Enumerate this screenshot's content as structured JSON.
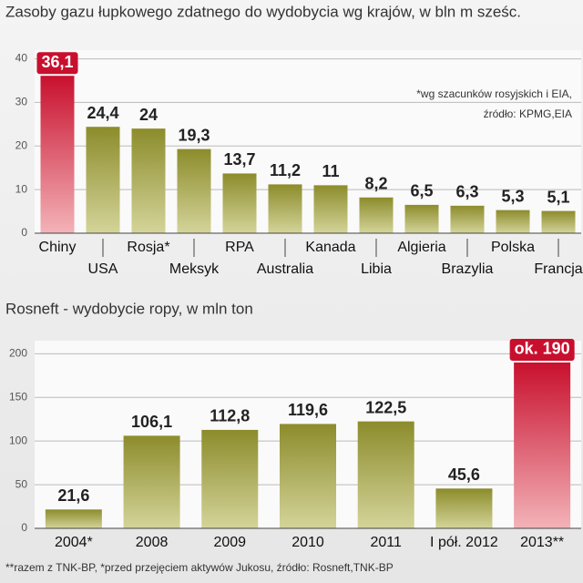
{
  "chart_data": [
    {
      "type": "bar",
      "title": "Zasoby gazu łupkowego zdatnego do wydobycia wg krajów, w bln m sześc.",
      "annotations": [
        "*wg szacunków rosyjskich i EIA,",
        "źródło: KPMG,EIA"
      ],
      "categories": [
        "Chiny",
        "USA",
        "Rosja*",
        "Meksyk",
        "RPA",
        "Australia",
        "Kanada",
        "Libia",
        "Algieria",
        "Brazylia",
        "Polska",
        "Francja"
      ],
      "values": [
        36.1,
        24.4,
        24,
        19.3,
        13.7,
        11.2,
        11,
        8.2,
        6.5,
        6.3,
        5.3,
        5.1
      ],
      "value_labels": [
        "36,1",
        "24,4",
        "24",
        "19,3",
        "13,7",
        "11,2",
        "11",
        "8,2",
        "6,5",
        "6,3",
        "5,3",
        "5,1"
      ],
      "colors": [
        "#c8102e",
        "#8c8c2c",
        "#8c8c2c",
        "#8c8c2c",
        "#8c8c2c",
        "#8c8c2c",
        "#8c8c2c",
        "#8c8c2c",
        "#8c8c2c",
        "#8c8c2c",
        "#8c8c2c",
        "#8c8c2c"
      ],
      "ylim": [
        0,
        42
      ],
      "yticks": [
        0,
        10,
        20,
        30,
        40
      ],
      "grid": true
    },
    {
      "type": "bar",
      "title": "Rosneft - wydobycie ropy, w mln ton",
      "annotations": [
        "**razem z TNK-BP, *przed przejęciem aktywów Jukosu, źródło: Rosneft,TNK-BP"
      ],
      "categories": [
        "2004*",
        "2008",
        "2009",
        "2010",
        "2011",
        "I pół. 2012",
        "2013**"
      ],
      "values": [
        21.6,
        106.1,
        112.8,
        119.6,
        122.5,
        45.6,
        190
      ],
      "value_labels": [
        "21,6",
        "106,1",
        "112,8",
        "119,6",
        "122,5",
        "45,6",
        "ok. 190"
      ],
      "colors": [
        "#8c8c2c",
        "#8c8c2c",
        "#8c8c2c",
        "#8c8c2c",
        "#8c8c2c",
        "#8c8c2c",
        "#c8102e"
      ],
      "ylim": [
        0,
        215
      ],
      "yticks": [
        0,
        50,
        100,
        150,
        200
      ],
      "grid": true
    }
  ]
}
